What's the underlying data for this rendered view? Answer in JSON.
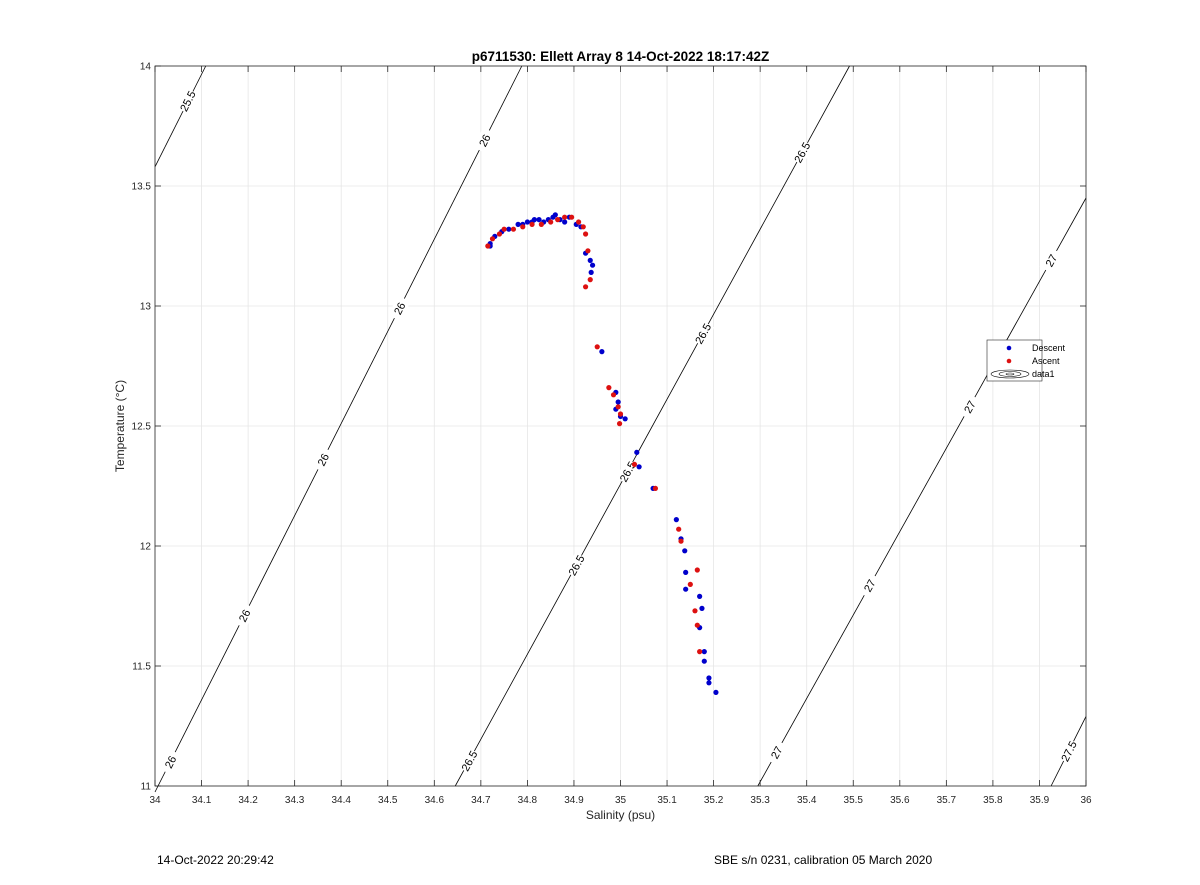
{
  "chart_data": {
    "type": "scatter",
    "title": "p6711530: Ellett Array 8 14-Oct-2022 18:17:42Z",
    "xlabel": "Salinity (psu)",
    "ylabel": "Temperature (°C)",
    "xlim": [
      34,
      36
    ],
    "ylim": [
      11,
      14
    ],
    "x_ticks": [
      "34",
      "34.1",
      "34.2",
      "34.3",
      "34.4",
      "34.5",
      "34.6",
      "34.7",
      "34.8",
      "34.9",
      "35",
      "35.1",
      "35.2",
      "35.3",
      "35.4",
      "35.5",
      "35.6",
      "35.7",
      "35.8",
      "35.9",
      "36"
    ],
    "y_ticks": [
      "11",
      "11.5",
      "12",
      "12.5",
      "13",
      "13.5",
      "14"
    ],
    "grid": true,
    "legend_position": "right",
    "legend": [
      "Descent",
      "Ascent",
      "data1"
    ],
    "colors": {
      "descent": "#0000cc",
      "ascent": "#dd1111",
      "contour": "#000000",
      "grid": "#e6e6e6"
    },
    "series": [
      {
        "name": "Descent",
        "points": [
          [
            34.72,
            13.25
          ],
          [
            34.72,
            13.26
          ],
          [
            34.73,
            13.29
          ],
          [
            34.745,
            13.31
          ],
          [
            34.76,
            13.32
          ],
          [
            34.78,
            13.34
          ],
          [
            34.79,
            13.34
          ],
          [
            34.8,
            13.35
          ],
          [
            34.81,
            13.35
          ],
          [
            34.815,
            13.36
          ],
          [
            34.825,
            13.36
          ],
          [
            34.835,
            13.35
          ],
          [
            34.845,
            13.36
          ],
          [
            34.855,
            13.37
          ],
          [
            34.86,
            13.38
          ],
          [
            34.87,
            13.36
          ],
          [
            34.88,
            13.35
          ],
          [
            34.89,
            13.37
          ],
          [
            34.905,
            13.34
          ],
          [
            34.915,
            13.33
          ],
          [
            34.925,
            13.22
          ],
          [
            34.935,
            13.19
          ],
          [
            34.94,
            13.17
          ],
          [
            34.937,
            13.14
          ],
          [
            34.96,
            12.81
          ],
          [
            34.99,
            12.64
          ],
          [
            34.995,
            12.6
          ],
          [
            34.99,
            12.57
          ],
          [
            35.0,
            12.54
          ],
          [
            35.01,
            12.53
          ],
          [
            35.035,
            12.39
          ],
          [
            35.04,
            12.33
          ],
          [
            35.07,
            12.24
          ],
          [
            35.12,
            12.11
          ],
          [
            35.13,
            12.03
          ],
          [
            35.138,
            11.98
          ],
          [
            35.14,
            11.89
          ],
          [
            35.14,
            11.82
          ],
          [
            35.17,
            11.79
          ],
          [
            35.175,
            11.74
          ],
          [
            35.17,
            11.66
          ],
          [
            35.18,
            11.56
          ],
          [
            35.18,
            11.52
          ],
          [
            35.19,
            11.45
          ],
          [
            35.19,
            11.43
          ],
          [
            35.205,
            11.39
          ]
        ]
      },
      {
        "name": "Ascent",
        "points": [
          [
            34.715,
            13.25
          ],
          [
            34.725,
            13.28
          ],
          [
            34.74,
            13.3
          ],
          [
            34.75,
            13.32
          ],
          [
            34.77,
            13.32
          ],
          [
            34.79,
            13.33
          ],
          [
            34.81,
            13.34
          ],
          [
            34.83,
            13.34
          ],
          [
            34.85,
            13.35
          ],
          [
            34.865,
            13.36
          ],
          [
            34.88,
            13.37
          ],
          [
            34.895,
            13.37
          ],
          [
            34.91,
            13.35
          ],
          [
            34.92,
            13.33
          ],
          [
            34.925,
            13.3
          ],
          [
            34.93,
            13.23
          ],
          [
            34.935,
            13.11
          ],
          [
            34.925,
            13.08
          ],
          [
            34.95,
            12.83
          ],
          [
            34.975,
            12.66
          ],
          [
            34.985,
            12.63
          ],
          [
            34.995,
            12.58
          ],
          [
            34.998,
            12.51
          ],
          [
            35.0,
            12.55
          ],
          [
            35.03,
            12.34
          ],
          [
            35.075,
            12.24
          ],
          [
            35.125,
            12.07
          ],
          [
            35.13,
            12.02
          ],
          [
            35.15,
            11.84
          ],
          [
            35.165,
            11.9
          ],
          [
            35.16,
            11.73
          ],
          [
            35.165,
            11.67
          ],
          [
            35.17,
            11.56
          ]
        ]
      }
    ],
    "contours": [
      {
        "value": "25.5",
        "start": [
          34.0,
          13.58
        ],
        "end": [
          34.109,
          14.0
        ],
        "labels": [
          [
            34.07,
            13.854
          ]
        ]
      },
      {
        "value": "26",
        "start": [
          34.0,
          10.975
        ],
        "end": [
          34.788,
          14.0
        ],
        "labels": [
          [
            34.033,
            11.1
          ],
          [
            34.192,
            11.71
          ],
          [
            34.361,
            12.36
          ],
          [
            34.525,
            12.99
          ],
          [
            34.708,
            13.69
          ]
        ]
      },
      {
        "value": "26.5",
        "start": [
          34.645,
          11.0
        ],
        "end": [
          35.492,
          14.0
        ],
        "labels": [
          [
            34.675,
            11.105
          ],
          [
            34.905,
            11.92
          ],
          [
            35.015,
            12.31
          ],
          [
            35.177,
            12.885
          ],
          [
            35.39,
            13.64
          ]
        ]
      },
      {
        "value": "27",
        "start": [
          35.295,
          11.0
        ],
        "end": [
          36.0,
          13.45
        ],
        "labels": [
          [
            35.335,
            11.14
          ],
          [
            35.535,
            11.835
          ],
          [
            35.75,
            12.58
          ],
          [
            35.925,
            13.19
          ]
        ]
      },
      {
        "value": "27.5",
        "start": [
          35.925,
          11.0
        ],
        "end": [
          36.0,
          11.29
        ],
        "labels": [
          [
            35.963,
            11.145
          ]
        ]
      }
    ]
  },
  "footer": {
    "timestamp": "14-Oct-2022 20:29:42",
    "sensor": "SBE s/n 0231, calibration 05 March 2020"
  }
}
